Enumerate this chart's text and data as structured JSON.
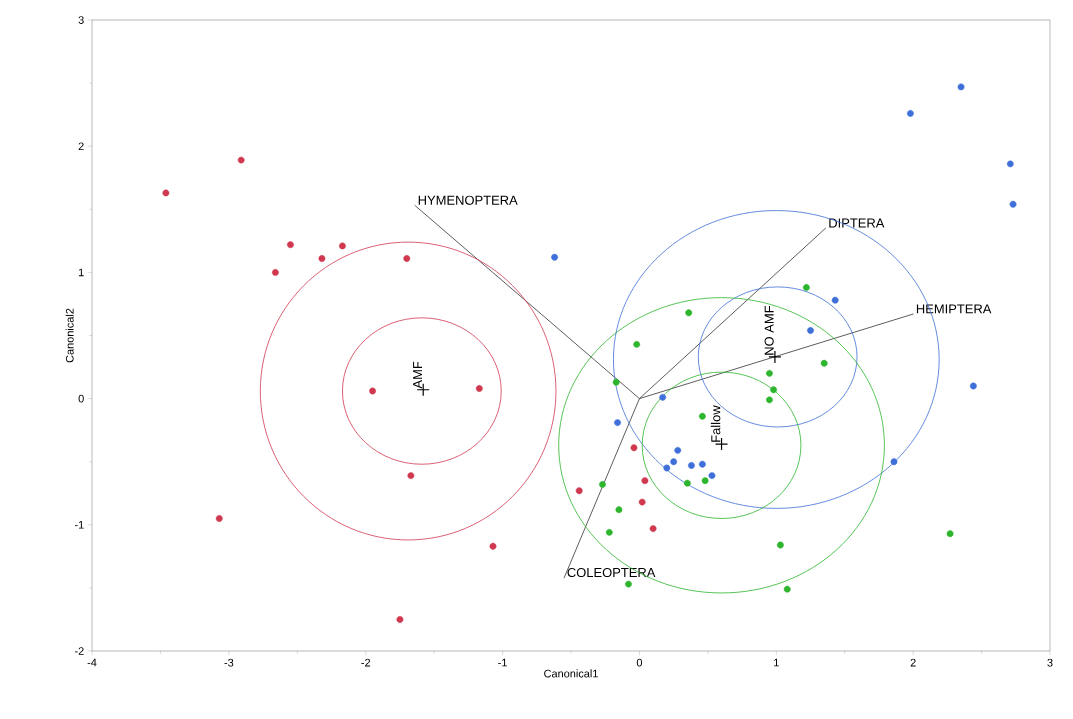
{
  "chart_data": {
    "type": "scatter",
    "xlabel": "Canonical1",
    "ylabel": "Canonical2",
    "xlim": [
      -4,
      3
    ],
    "ylim": [
      -2,
      3
    ],
    "xticks": [
      -4,
      -3,
      -2,
      -1,
      0,
      1,
      2,
      3
    ],
    "yticks": [
      -2,
      -1,
      0,
      1,
      2,
      3
    ],
    "grid": false,
    "marker": "circle",
    "series": [
      {
        "color": "#d0384f",
        "x": [
          -3.46,
          -2.91,
          -2.55,
          -2.66,
          -2.32,
          -2.17,
          -1.7,
          -1.95,
          -1.17,
          -1.67,
          -3.07,
          -1.07,
          -1.75,
          -0.04,
          -0.44,
          0.04,
          0.02,
          0.1
        ],
        "values": [
          1.63,
          1.89,
          1.22,
          1.0,
          1.11,
          1.21,
          1.11,
          0.06,
          0.08,
          -0.61,
          -0.95,
          -1.17,
          -1.75,
          -0.39,
          -0.73,
          -0.65,
          -0.82,
          -1.03
        ]
      },
      {
        "color": "#3f6fd8",
        "x": [
          1.98,
          2.35,
          2.71,
          2.73,
          2.44,
          1.86,
          -0.62,
          1.43,
          1.25,
          0.17,
          -0.16,
          0.28,
          0.25,
          0.2,
          0.38,
          0.46,
          0.53
        ],
        "values": [
          2.26,
          2.47,
          1.86,
          1.54,
          0.1,
          -0.5,
          1.12,
          0.78,
          0.54,
          0.01,
          -0.19,
          -0.41,
          -0.5,
          -0.55,
          -0.53,
          -0.52,
          -0.61
        ]
      },
      {
        "color": "#2db52d",
        "x": [
          1.22,
          0.36,
          -0.02,
          1.35,
          0.95,
          0.98,
          0.95,
          -0.17,
          0.46,
          0.35,
          0.48,
          -0.27,
          -0.15,
          -0.22,
          1.03,
          1.08,
          -0.08,
          2.27
        ],
        "values": [
          0.88,
          0.68,
          0.43,
          0.28,
          0.2,
          0.07,
          -0.01,
          0.13,
          -0.14,
          -0.67,
          -0.65,
          -0.68,
          -0.88,
          -1.06,
          -1.16,
          -1.51,
          -1.47,
          -1.07
        ]
      },
      {
        "type": "line",
        "color": "#333333",
        "marker": "none",
        "x": [
          -1.64,
          0,
          2.0
        ],
        "values": [
          1.53,
          0,
          0.67
        ]
      },
      {
        "type": "line",
        "color": "#333333",
        "marker": "none",
        "x": [
          -0.55,
          0,
          1.36
        ],
        "values": [
          -1.42,
          0,
          1.35
        ]
      },
      {
        "color": "#000000",
        "marker": "cross",
        "x": [
          -1.58,
          0.99,
          0.6
        ],
        "values": [
          0.07,
          0.33,
          -0.36
        ]
      }
    ],
    "annotations": [
      {
        "text": "HYMENOPTERA",
        "x": -1.64,
        "y": 1.53
      },
      {
        "text": "DIPTERA",
        "x": 1.36,
        "y": 1.35
      },
      {
        "text": "HEMIPTERA",
        "x": 2.0,
        "y": 0.67
      },
      {
        "text": "COLEOPTERA",
        "x": -0.55,
        "y": -1.42
      },
      {
        "text": "AMF",
        "x": -1.58,
        "y": 0.07
      },
      {
        "text": "NO AMF",
        "x": 0.99,
        "y": 0.33
      },
      {
        "text": "Fallow",
        "x": 0.6,
        "y": -0.36
      }
    ]
  }
}
